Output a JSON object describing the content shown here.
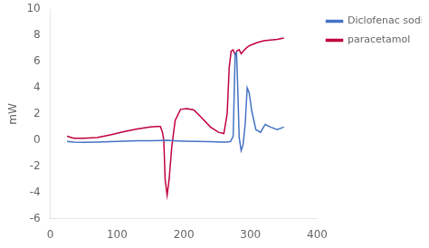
{
  "chart_data": {
    "type": "line",
    "ylabel": "mW",
    "xlim": [
      0,
      400
    ],
    "ylim": [
      -6,
      10
    ],
    "xticks": [
      0,
      100,
      200,
      300,
      400
    ],
    "yticks": [
      -6,
      -4,
      -2,
      0,
      2,
      4,
      6,
      8,
      10
    ],
    "grid": false,
    "legend": "upper right",
    "series": [
      {
        "name": "Diclofenac sodium",
        "color": "#4472c4",
        "x": [
          25,
          35,
          50,
          70,
          90,
          110,
          130,
          150,
          165,
          175,
          185,
          200,
          220,
          240,
          255,
          265,
          270,
          274,
          277,
          279,
          281,
          283,
          286,
          289,
          292,
          295,
          298,
          302,
          308,
          315,
          322,
          330,
          340,
          350
        ],
        "values": [
          -0.1,
          -0.15,
          -0.17,
          -0.15,
          -0.12,
          -0.08,
          -0.05,
          -0.05,
          -0.03,
          -0.02,
          -0.05,
          -0.08,
          -0.1,
          -0.12,
          -0.15,
          -0.15,
          -0.1,
          0.3,
          6.6,
          6.7,
          3.8,
          0.2,
          -0.8,
          -0.3,
          1.2,
          4.0,
          3.6,
          2.2,
          0.8,
          0.6,
          1.2,
          1.0,
          0.8,
          1.0
        ]
      },
      {
        "name": "paracetamol",
        "color": "#c0003c",
        "x": [
          25,
          35,
          50,
          70,
          90,
          110,
          130,
          150,
          160,
          165,
          168,
          170,
          172,
          175,
          178,
          182,
          187,
          195,
          205,
          215,
          225,
          240,
          252,
          260,
          265,
          268,
          271,
          274,
          277,
          280,
          283,
          286,
          290,
          295,
          300,
          310,
          320,
          330,
          340,
          350
        ],
        "values": [
          0.3,
          0.15,
          0.15,
          0.2,
          0.4,
          0.65,
          0.85,
          1.0,
          1.05,
          1.05,
          0.6,
          0.0,
          -3.0,
          -4.2,
          -3.0,
          -0.5,
          1.5,
          2.35,
          2.4,
          2.3,
          1.8,
          1.0,
          0.6,
          0.5,
          2.0,
          5.5,
          6.8,
          6.9,
          6.5,
          6.85,
          6.9,
          6.6,
          6.85,
          7.1,
          7.25,
          7.45,
          7.6,
          7.65,
          7.7,
          7.8
        ]
      }
    ]
  }
}
